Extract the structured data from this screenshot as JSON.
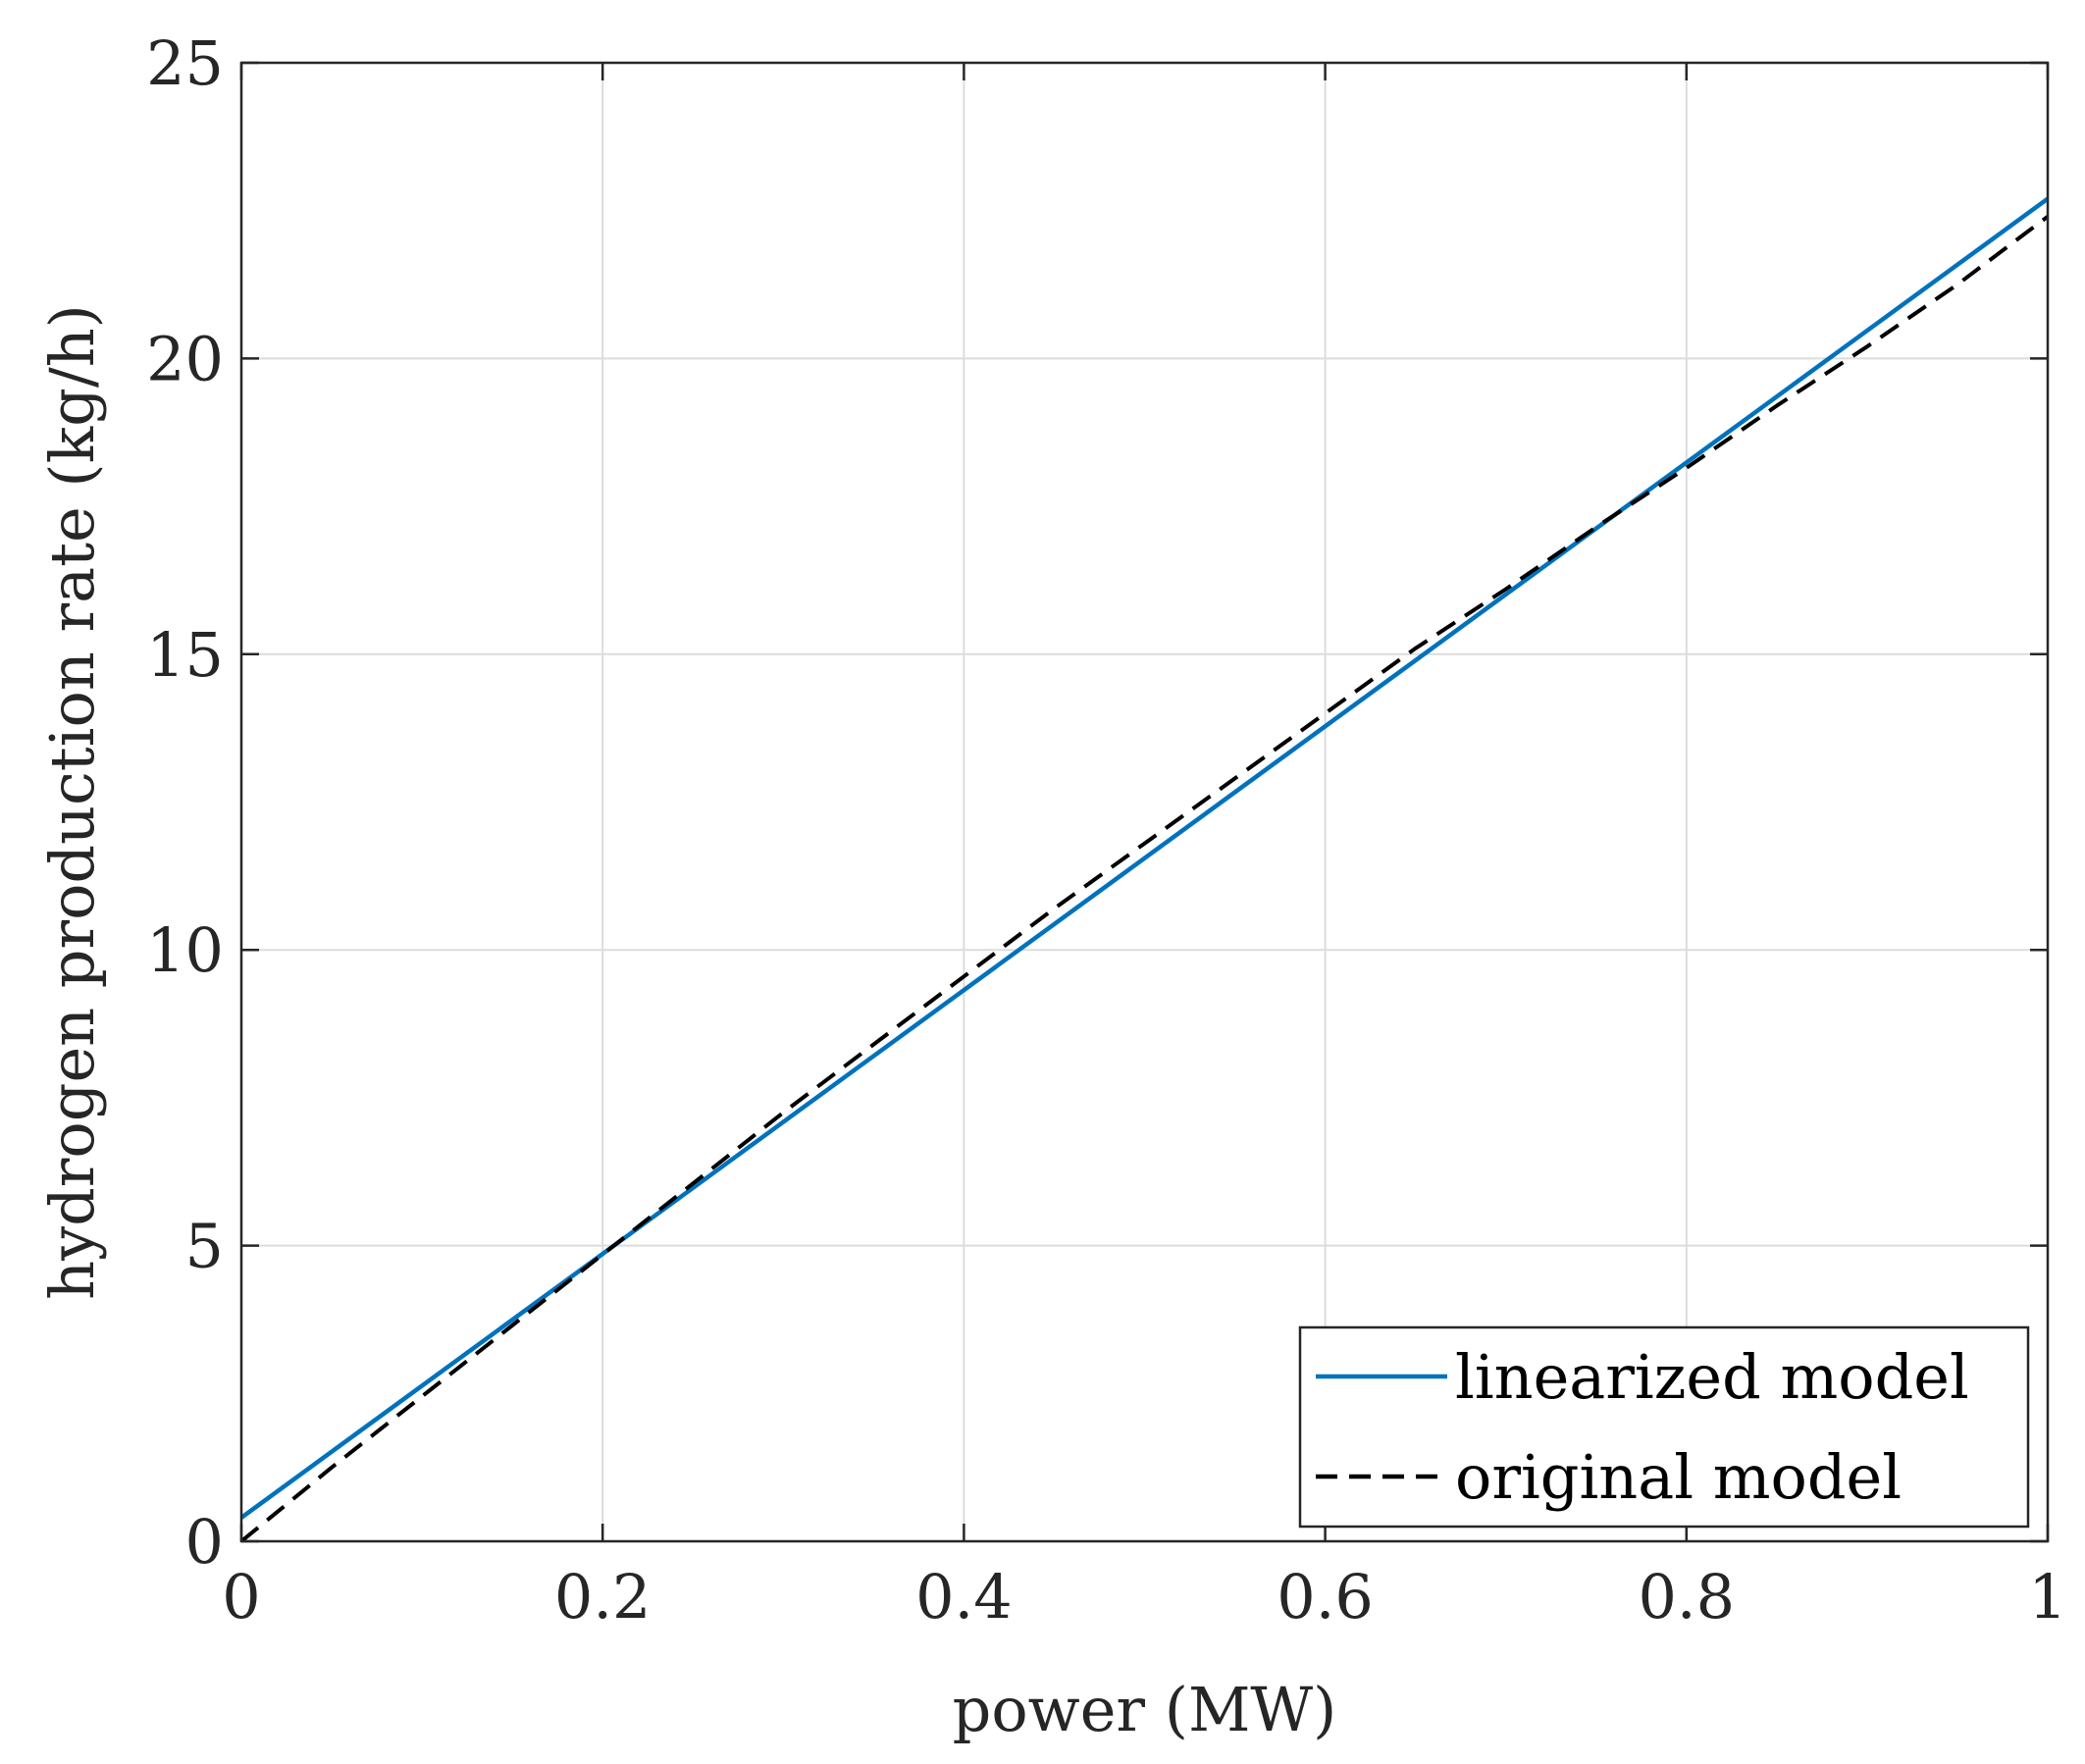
{
  "chart_data": {
    "type": "line",
    "title": "",
    "xlabel": "power (MW)",
    "ylabel": "hydrogen production rate (kg/h)",
    "xlim": [
      0,
      1
    ],
    "ylim": [
      0,
      25
    ],
    "xticks": [
      0,
      0.2,
      0.4,
      0.6,
      0.8,
      1
    ],
    "xtick_labels": [
      "0",
      "0.2",
      "0.4",
      "0.6",
      "0.8",
      "1"
    ],
    "yticks": [
      0,
      5,
      10,
      15,
      20,
      25
    ],
    "ytick_labels": [
      "0",
      "5",
      "10",
      "15",
      "20",
      "25"
    ],
    "grid": true,
    "legend_position": "bottom-right",
    "series": [
      {
        "name": "linearized model",
        "color": "#0072BD",
        "style": "solid",
        "x": [
          0,
          1
        ],
        "y": [
          0.4,
          22.7
        ]
      },
      {
        "name": "original model",
        "color": "#000000",
        "style": "dashed",
        "x": [
          0,
          0.05,
          0.1,
          0.15,
          0.2,
          0.25,
          0.3,
          0.35,
          0.4,
          0.45,
          0.5,
          0.55,
          0.6,
          0.65,
          0.7,
          0.75,
          0.8,
          0.85,
          0.9,
          0.95,
          1
        ],
        "y": [
          0,
          1.25,
          2.45,
          3.65,
          4.85,
          6.05,
          7.25,
          8.4,
          9.55,
          10.7,
          11.8,
          12.9,
          14.0,
          15.1,
          16.1,
          17.15,
          18.15,
          19.2,
          20.2,
          21.25,
          22.4
        ]
      }
    ]
  }
}
